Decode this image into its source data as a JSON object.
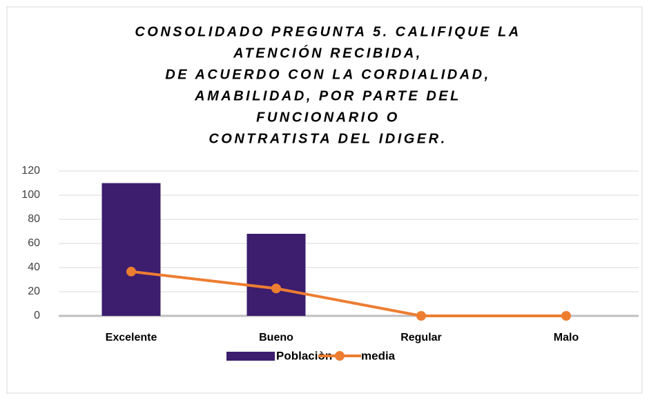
{
  "chart_data": {
    "type": "bar",
    "title": [
      "CONSOLIDADO PREGUNTA 5. CALIFIQUE LA",
      "ATENCIÓN RECIBIDA,",
      "DE ACUERDO CON LA CORDIALIDAD,",
      "AMABILIDAD, POR PARTE DEL",
      "FUNCIONARIO O",
      "CONTRATISTA DEL IDIGER."
    ],
    "categories": [
      "Excelente",
      "Bueno",
      "Regular",
      "Malo"
    ],
    "series": [
      {
        "name": "Poblaciòn",
        "type": "bar",
        "color": "#3c1d6e",
        "values": [
          110,
          68,
          0,
          0
        ]
      },
      {
        "name": "media",
        "type": "line",
        "color": "#ed7d31",
        "values": [
          36.7,
          22.7,
          0,
          0
        ]
      }
    ],
    "ylim": [
      0,
      120
    ],
    "yticks": [
      0,
      20,
      40,
      60,
      80,
      100,
      120
    ],
    "grid": true,
    "legend": "bottom"
  }
}
